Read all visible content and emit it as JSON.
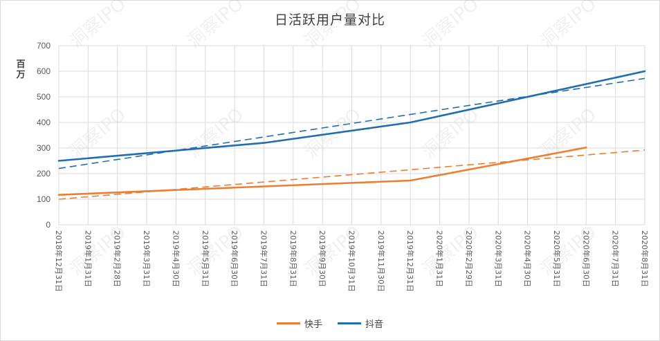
{
  "chart_data": {
    "type": "line",
    "title": "日活跃用户量对比",
    "ylabel": "百万",
    "xlabel": "",
    "ylim": [
      0,
      700
    ],
    "yticks": [
      0,
      100,
      200,
      300,
      400,
      500,
      600,
      700
    ],
    "grid": true,
    "legend_position": "bottom",
    "x": [
      "2018年12月31日",
      "2019年1月31日",
      "2019年2月28日",
      "2019年3月31日",
      "2019年4月30日",
      "2019年5月31日",
      "2019年6月30日",
      "2019年7月31日",
      "2019年8月31日",
      "2019年9月30日",
      "2019年10月31日",
      "2019年11月30日",
      "2019年12月31日",
      "2020年1月31日",
      "2020年2月29日",
      "2020年3月31日",
      "2020年4月30日",
      "2020年5月31日",
      "2020年6月30日",
      "2020年7月31日",
      "2020年8月31日"
    ],
    "series": [
      {
        "name": "快手",
        "color": "#ed7d31",
        "points": [
          {
            "x": "2018年12月31日",
            "y": 117
          },
          {
            "x": "2019年7月31日",
            "y": 150
          },
          {
            "x": "2019年12月31日",
            "y": 173
          },
          {
            "x": "2020年6月30日",
            "y": 302
          }
        ],
        "trendline": {
          "from": {
            "x": "2018年12月31日",
            "y": 100
          },
          "to": {
            "x": "2020年8月31日",
            "y": 292
          }
        }
      },
      {
        "name": "抖音",
        "color": "#1f6eb0",
        "points": [
          {
            "x": "2018年12月31日",
            "y": 250
          },
          {
            "x": "2019年7月31日",
            "y": 320
          },
          {
            "x": "2019年12月31日",
            "y": 400
          },
          {
            "x": "2020年8月31日",
            "y": 600
          }
        ],
        "trendline": {
          "from": {
            "x": "2018年12月31日",
            "y": 220
          },
          "to": {
            "x": "2020年8月31日",
            "y": 572
          }
        }
      }
    ]
  },
  "watermark": "洞察IPO"
}
